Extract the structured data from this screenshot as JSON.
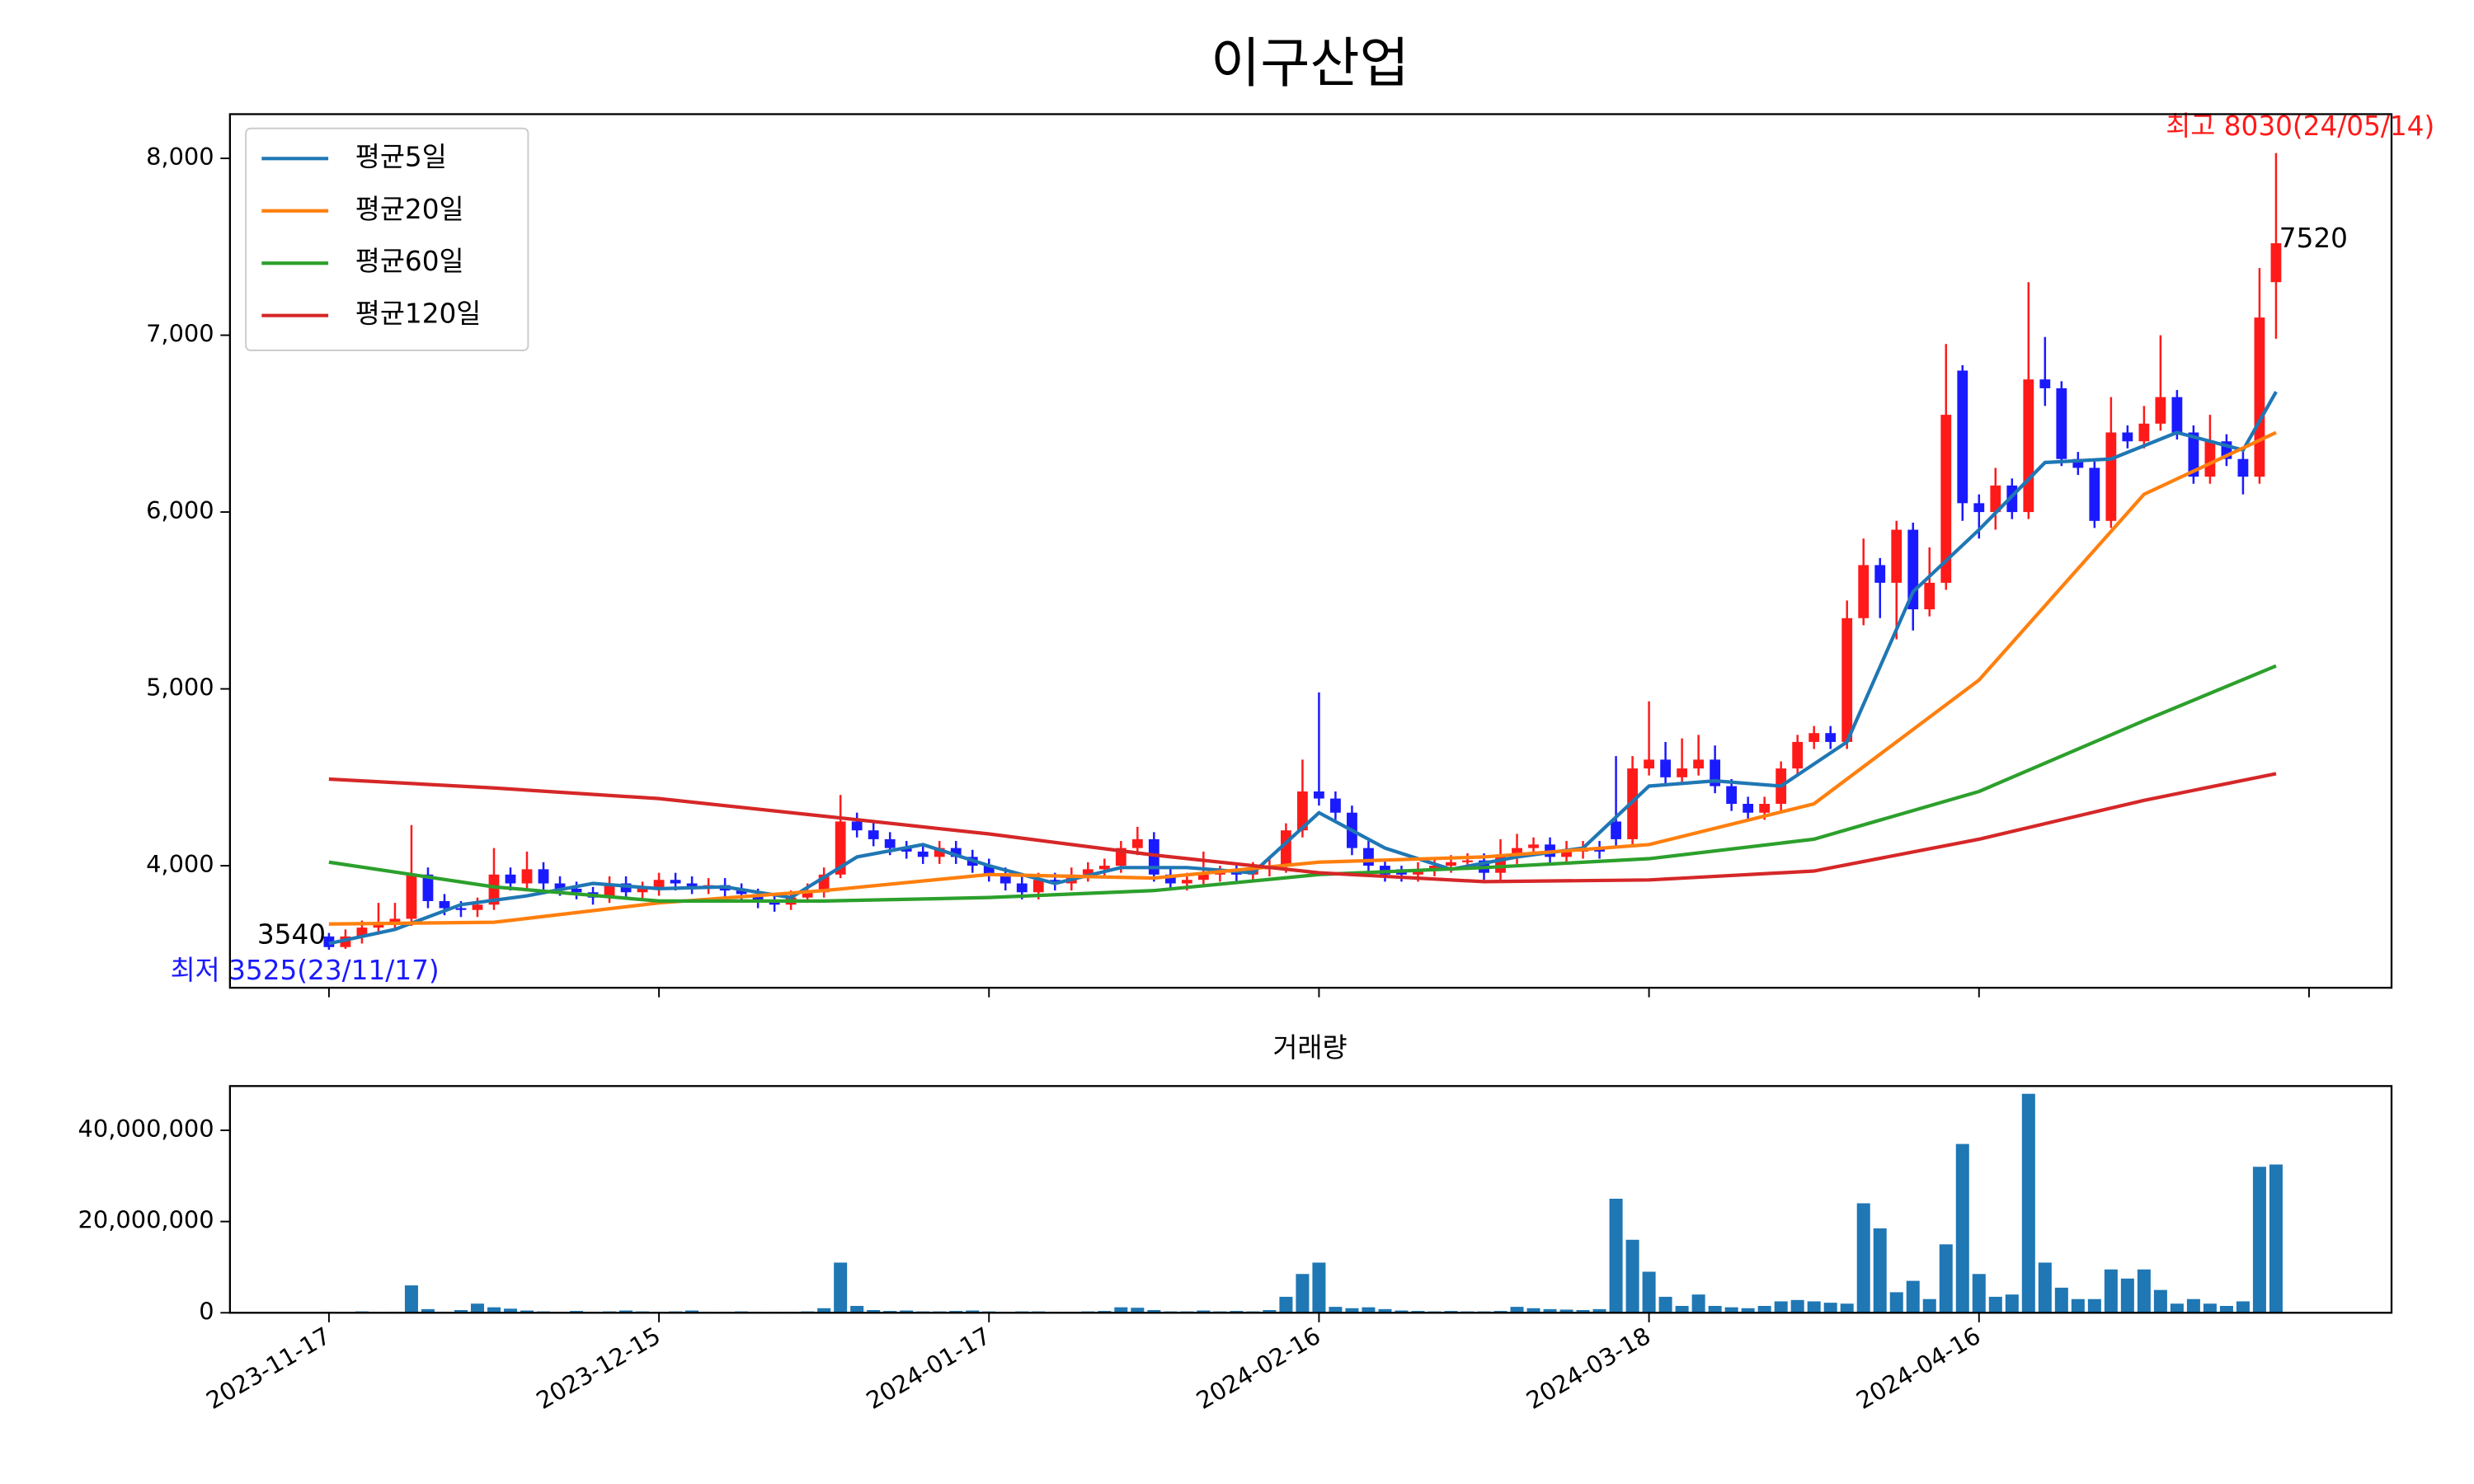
{
  "chart_data": [
    {
      "type": "candlestick",
      "title": "이구산업",
      "legend": "upper left",
      "up_color": "#ff1a1a",
      "down_color": "#1a1aff",
      "xlim": [
        -6,
        125
      ],
      "ylim": [
        3310,
        8250
      ],
      "xticks": [
        0,
        20,
        40,
        60,
        80,
        100,
        120
      ],
      "yticks": [
        {
          "value": 4000,
          "label": "4,000"
        },
        {
          "value": 5000,
          "label": "5,000"
        },
        {
          "value": 6000,
          "label": "6,000"
        },
        {
          "value": 7000,
          "label": "7,000"
        },
        {
          "value": 8000,
          "label": "8,000"
        }
      ],
      "open": [
        3600,
        3540,
        3600,
        3650,
        3680,
        3700,
        3950,
        3800,
        3760,
        3750,
        3780,
        3950,
        3900,
        3980,
        3900,
        3870,
        3850,
        3820,
        3900,
        3850,
        3870,
        3920,
        3900,
        3880,
        3890,
        3860,
        3840,
        3800,
        3780,
        3820,
        3850,
        3950,
        4250,
        4200,
        4150,
        4100,
        4080,
        4050,
        4100,
        4050,
        4000,
        3950,
        3900,
        3850,
        3920,
        3900,
        3950,
        3980,
        4000,
        4100,
        4150,
        3950,
        3900,
        3920,
        3950,
        3960,
        3950,
        3980,
        4000,
        4200,
        4420,
        4380,
        4300,
        4100,
        4000,
        3980,
        3950,
        3980,
        4000,
        4020,
        4030,
        3960,
        4050,
        4100,
        4120,
        4050,
        4080,
        4100,
        4250,
        4150,
        4550,
        4600,
        4500,
        4550,
        4600,
        4450,
        4350,
        4300,
        4350,
        4550,
        4700,
        4750,
        4700,
        5400,
        5700,
        5600,
        5900,
        5450,
        5600,
        6800,
        6050,
        6000,
        6150,
        6000,
        6750,
        6700,
        6300,
        6250,
        5950,
        6450,
        6400,
        6500,
        6650,
        6450,
        6200,
        6400,
        6300,
        6200,
        7300
      ],
      "high": [
        3620,
        3640,
        3690,
        3790,
        3790,
        4230,
        3990,
        3840,
        3800,
        3820,
        4100,
        3990,
        4080,
        4020,
        3940,
        3910,
        3880,
        3940,
        3940,
        3910,
        3960,
        3960,
        3940,
        3930,
        3930,
        3900,
        3870,
        3840,
        3860,
        3900,
        3990,
        4400,
        4300,
        4250,
        4190,
        4140,
        4120,
        4140,
        4140,
        4090,
        4040,
        3990,
        3940,
        3960,
        3960,
        3990,
        4020,
        4040,
        4140,
        4220,
        4190,
        3990,
        3960,
        4080,
        4000,
        4000,
        4020,
        4040,
        4240,
        4600,
        4980,
        4420,
        4340,
        4140,
        4040,
        4000,
        4020,
        4040,
        4060,
        4070,
        4070,
        4150,
        4180,
        4160,
        4160,
        4140,
        4140,
        4140,
        4620,
        4620,
        4930,
        4700,
        4720,
        4740,
        4680,
        4490,
        4390,
        4390,
        4590,
        4740,
        4790,
        4790,
        5500,
        5850,
        5740,
        5950,
        5940,
        5800,
        6950,
        6830,
        6100,
        6250,
        6190,
        7300,
        6990,
        6740,
        6340,
        6290,
        6650,
        6490,
        6600,
        7000,
        6690,
        6490,
        6550,
        6440,
        6340,
        7380,
        8030
      ],
      "low": [
        3525,
        3530,
        3560,
        3610,
        3640,
        3660,
        3760,
        3720,
        3710,
        3710,
        3750,
        3860,
        3870,
        3860,
        3830,
        3810,
        3780,
        3790,
        3810,
        3810,
        3830,
        3860,
        3840,
        3840,
        3820,
        3800,
        3760,
        3740,
        3750,
        3790,
        3820,
        3930,
        4160,
        4110,
        4060,
        4040,
        4010,
        4010,
        4010,
        3960,
        3910,
        3860,
        3810,
        3810,
        3860,
        3860,
        3910,
        3940,
        3960,
        4060,
        3910,
        3860,
        3860,
        3880,
        3910,
        3910,
        3910,
        3940,
        3960,
        4160,
        4340,
        4260,
        4060,
        3960,
        3910,
        3910,
        3910,
        3940,
        3960,
        3980,
        3920,
        3920,
        4010,
        4060,
        4010,
        4010,
        4040,
        4040,
        4100,
        4110,
        4510,
        4460,
        4460,
        4510,
        4410,
        4310,
        4260,
        4260,
        4310,
        4510,
        4660,
        4660,
        4660,
        5360,
        5400,
        5280,
        5330,
        5410,
        5560,
        5950,
        5850,
        5900,
        5960,
        5960,
        6600,
        6260,
        6210,
        5910,
        5910,
        6360,
        6360,
        6460,
        6410,
        6160,
        6160,
        6260,
        6100,
        6160,
        6980
      ],
      "close": [
        3540,
        3600,
        3650,
        3680,
        3700,
        3950,
        3800,
        3760,
        3750,
        3780,
        3950,
        3900,
        3980,
        3900,
        3870,
        3850,
        3820,
        3900,
        3850,
        3870,
        3920,
        3900,
        3880,
        3890,
        3860,
        3840,
        3800,
        3780,
        3820,
        3850,
        3950,
        4250,
        4200,
        4150,
        4100,
        4080,
        4050,
        4100,
        4050,
        4000,
        3950,
        3900,
        3850,
        3920,
        3900,
        3950,
        3980,
        4000,
        4100,
        4150,
        3950,
        3900,
        3920,
        3950,
        3960,
        3950,
        3980,
        4000,
        4200,
        4420,
        4380,
        4300,
        4100,
        4000,
        3950,
        3950,
        3980,
        4000,
        4020,
        4030,
        3960,
        4050,
        4100,
        4120,
        4050,
        4080,
        4100,
        4080,
        4150,
        4550,
        4600,
        4500,
        4550,
        4600,
        4450,
        4350,
        4300,
        4350,
        4550,
        4700,
        4750,
        4700,
        5400,
        5700,
        5600,
        5900,
        5450,
        5600,
        6550,
        6050,
        6000,
        6150,
        6000,
        6750,
        6700,
        6300,
        6250,
        5950,
        6450,
        6400,
        6500,
        6650,
        6450,
        6200,
        6400,
        6300,
        6200,
        7100,
        7520
      ],
      "series": [
        {
          "name": "평균5일",
          "color": "#1f77b4",
          "x": [
            0,
            4,
            8,
            12,
            16,
            20,
            24,
            28,
            32,
            36,
            40,
            44,
            48,
            52,
            56,
            60,
            64,
            68,
            72,
            76,
            80,
            84,
            88,
            92,
            96,
            100,
            104,
            108,
            112,
            116,
            118
          ],
          "values": [
            3560,
            3640,
            3780,
            3830,
            3900,
            3870,
            3880,
            3820,
            4050,
            4120,
            4000,
            3900,
            3990,
            3990,
            3960,
            4300,
            4100,
            3980,
            4050,
            4100,
            4450,
            4480,
            4450,
            4700,
            5550,
            5900,
            6280,
            6300,
            6450,
            6350,
            6680
          ]
        },
        {
          "name": "평균20일",
          "color": "#ff7f0e",
          "x": [
            0,
            10,
            20,
            30,
            40,
            50,
            60,
            70,
            80,
            90,
            100,
            110,
            118
          ],
          "values": [
            3670,
            3680,
            3790,
            3860,
            3950,
            3930,
            4020,
            4050,
            4120,
            4350,
            5050,
            6100,
            6450
          ]
        },
        {
          "name": "평균60일",
          "color": "#2ca02c",
          "x": [
            0,
            10,
            20,
            30,
            40,
            50,
            60,
            70,
            80,
            90,
            100,
            110,
            118
          ],
          "values": [
            4020,
            3880,
            3800,
            3800,
            3820,
            3860,
            3950,
            3990,
            4040,
            4150,
            4420,
            4820,
            5130
          ]
        },
        {
          "name": "평균120일",
          "color": "#d62728",
          "x": [
            0,
            10,
            20,
            30,
            40,
            50,
            60,
            70,
            80,
            90,
            100,
            110,
            118
          ],
          "values": [
            4490,
            4440,
            4380,
            4280,
            4180,
            4060,
            3960,
            3910,
            3920,
            3970,
            4150,
            4370,
            4520
          ]
        }
      ],
      "max_label": "최고 8030(24/05/14)",
      "min_label": "최저 3525(23/11/17)",
      "first_label": "3540",
      "last_label": "7520"
    },
    {
      "type": "bar",
      "title": "거래량",
      "color": "#1f77b4",
      "xlim": [
        -6,
        125
      ],
      "ylim": [
        0,
        49700000
      ],
      "xticks": [
        {
          "value": 0,
          "label": "2023-11-17"
        },
        {
          "value": 20,
          "label": "2023-12-15"
        },
        {
          "value": 40,
          "label": "2024-01-17"
        },
        {
          "value": 60,
          "label": "2024-02-16"
        },
        {
          "value": 80,
          "label": "2024-03-18"
        },
        {
          "value": 100,
          "label": "2024-04-16"
        }
      ],
      "yticks": [
        0,
        {
          "value": 20000000,
          "label": "20,000,000"
        },
        {
          "value": 40000000,
          "label": "40,000,000"
        }
      ],
      "values": [
        200000,
        100000,
        300000,
        150000,
        200000,
        6000000,
        800000,
        200000,
        600000,
        2000000,
        1200000,
        900000,
        500000,
        300000,
        200000,
        400000,
        200000,
        300000,
        500000,
        300000,
        200000,
        300000,
        500000,
        200000,
        200000,
        300000,
        200000,
        200000,
        200000,
        300000,
        1000000,
        11000000,
        1500000,
        600000,
        400000,
        500000,
        300000,
        300000,
        400000,
        500000,
        300000,
        200000,
        300000,
        300000,
        200000,
        200000,
        300000,
        400000,
        1200000,
        1100000,
        600000,
        300000,
        300000,
        500000,
        300000,
        400000,
        300000,
        600000,
        3500000,
        8500000,
        11000000,
        1300000,
        1000000,
        1200000,
        800000,
        500000,
        400000,
        300000,
        400000,
        300000,
        300000,
        400000,
        1300000,
        1000000,
        800000,
        700000,
        600000,
        800000,
        25000000,
        16000000,
        9000000,
        3500000,
        1500000,
        4000000,
        1500000,
        1200000,
        1000000,
        1500000,
        2500000,
        2800000,
        2500000,
        2200000,
        2000000,
        24000000,
        18500000,
        4500000,
        7000000,
        3000000,
        15000000,
        37000000,
        8500000,
        3500000,
        4000000,
        48000000,
        11000000,
        5500000,
        3000000,
        3000000,
        9500000,
        7500000,
        9500000,
        5000000,
        2000000,
        3000000,
        2000000,
        1500000,
        2500000,
        32000000,
        32500000
      ]
    }
  ]
}
